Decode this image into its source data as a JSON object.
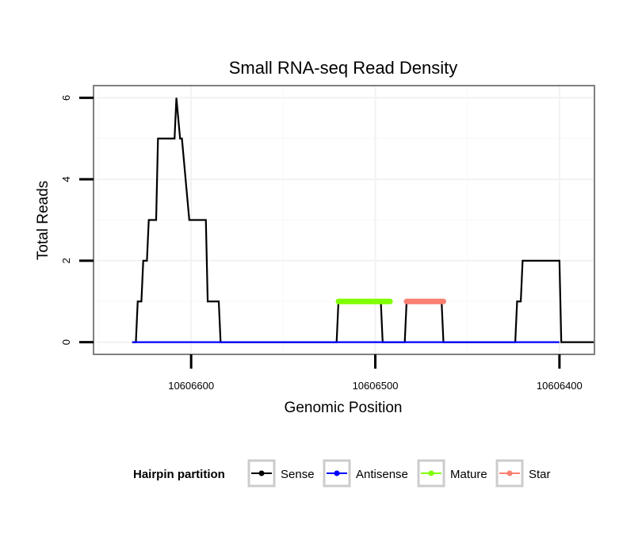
{
  "chart_data": {
    "type": "line",
    "title": "Small RNA-seq Read Density",
    "xlabel": "Genomic Position",
    "ylabel": "Total Reads",
    "x_reversed": true,
    "xlim": [
      10606653,
      10606381
    ],
    "ylim": [
      -0.3,
      6.3
    ],
    "x_ticks": [
      10606600,
      10606500,
      10606400
    ],
    "x_tick_labels": [
      "10606600",
      "10606500",
      "10606400"
    ],
    "y_ticks": [
      0,
      2,
      4,
      6
    ],
    "y_tick_labels": [
      "0",
      "2",
      "4",
      "6"
    ],
    "grid": true,
    "legend": {
      "title": "Hairpin partition",
      "position": "bottom",
      "entries": [
        {
          "label": "Sense",
          "color": "#000000"
        },
        {
          "label": "Antisense",
          "color": "#0000ff"
        },
        {
          "label": "Mature",
          "color": "#7fff00"
        },
        {
          "label": "Star",
          "color": "#fa8072"
        }
      ]
    },
    "series": [
      {
        "name": "Sense",
        "color": "#000000",
        "x": [
          10606632,
          10606630,
          10606629,
          10606627,
          10606626,
          10606624,
          10606623,
          10606619,
          10606618,
          10606609,
          10606608,
          10606606,
          10606605,
          10606601,
          10606600,
          10606592,
          10606591,
          10606585,
          10606584,
          10606521,
          10606520,
          10606497,
          10606496,
          10606484,
          10606483,
          10606464,
          10606463,
          10606424,
          10606423,
          10606421,
          10606420,
          10606400,
          10606399,
          10606381
        ],
        "y": [
          0,
          0,
          1,
          1,
          2,
          2,
          3,
          3,
          5,
          5,
          6,
          5,
          5,
          3,
          3,
          3,
          1,
          1,
          0,
          0,
          1,
          1,
          0,
          0,
          1,
          1,
          0,
          0,
          1,
          1,
          2,
          2,
          0,
          0
        ]
      },
      {
        "name": "Antisense",
        "color": "#0000ff",
        "x": [
          10606632,
          10606400
        ],
        "y": [
          0,
          0
        ]
      },
      {
        "name": "Mature",
        "color": "#7fff00",
        "x": [
          10606520,
          10606492
        ],
        "y": [
          1,
          1
        ]
      },
      {
        "name": "Star",
        "color": "#fa8072",
        "x": [
          10606483,
          10606463
        ],
        "y": [
          1,
          1
        ]
      }
    ]
  }
}
